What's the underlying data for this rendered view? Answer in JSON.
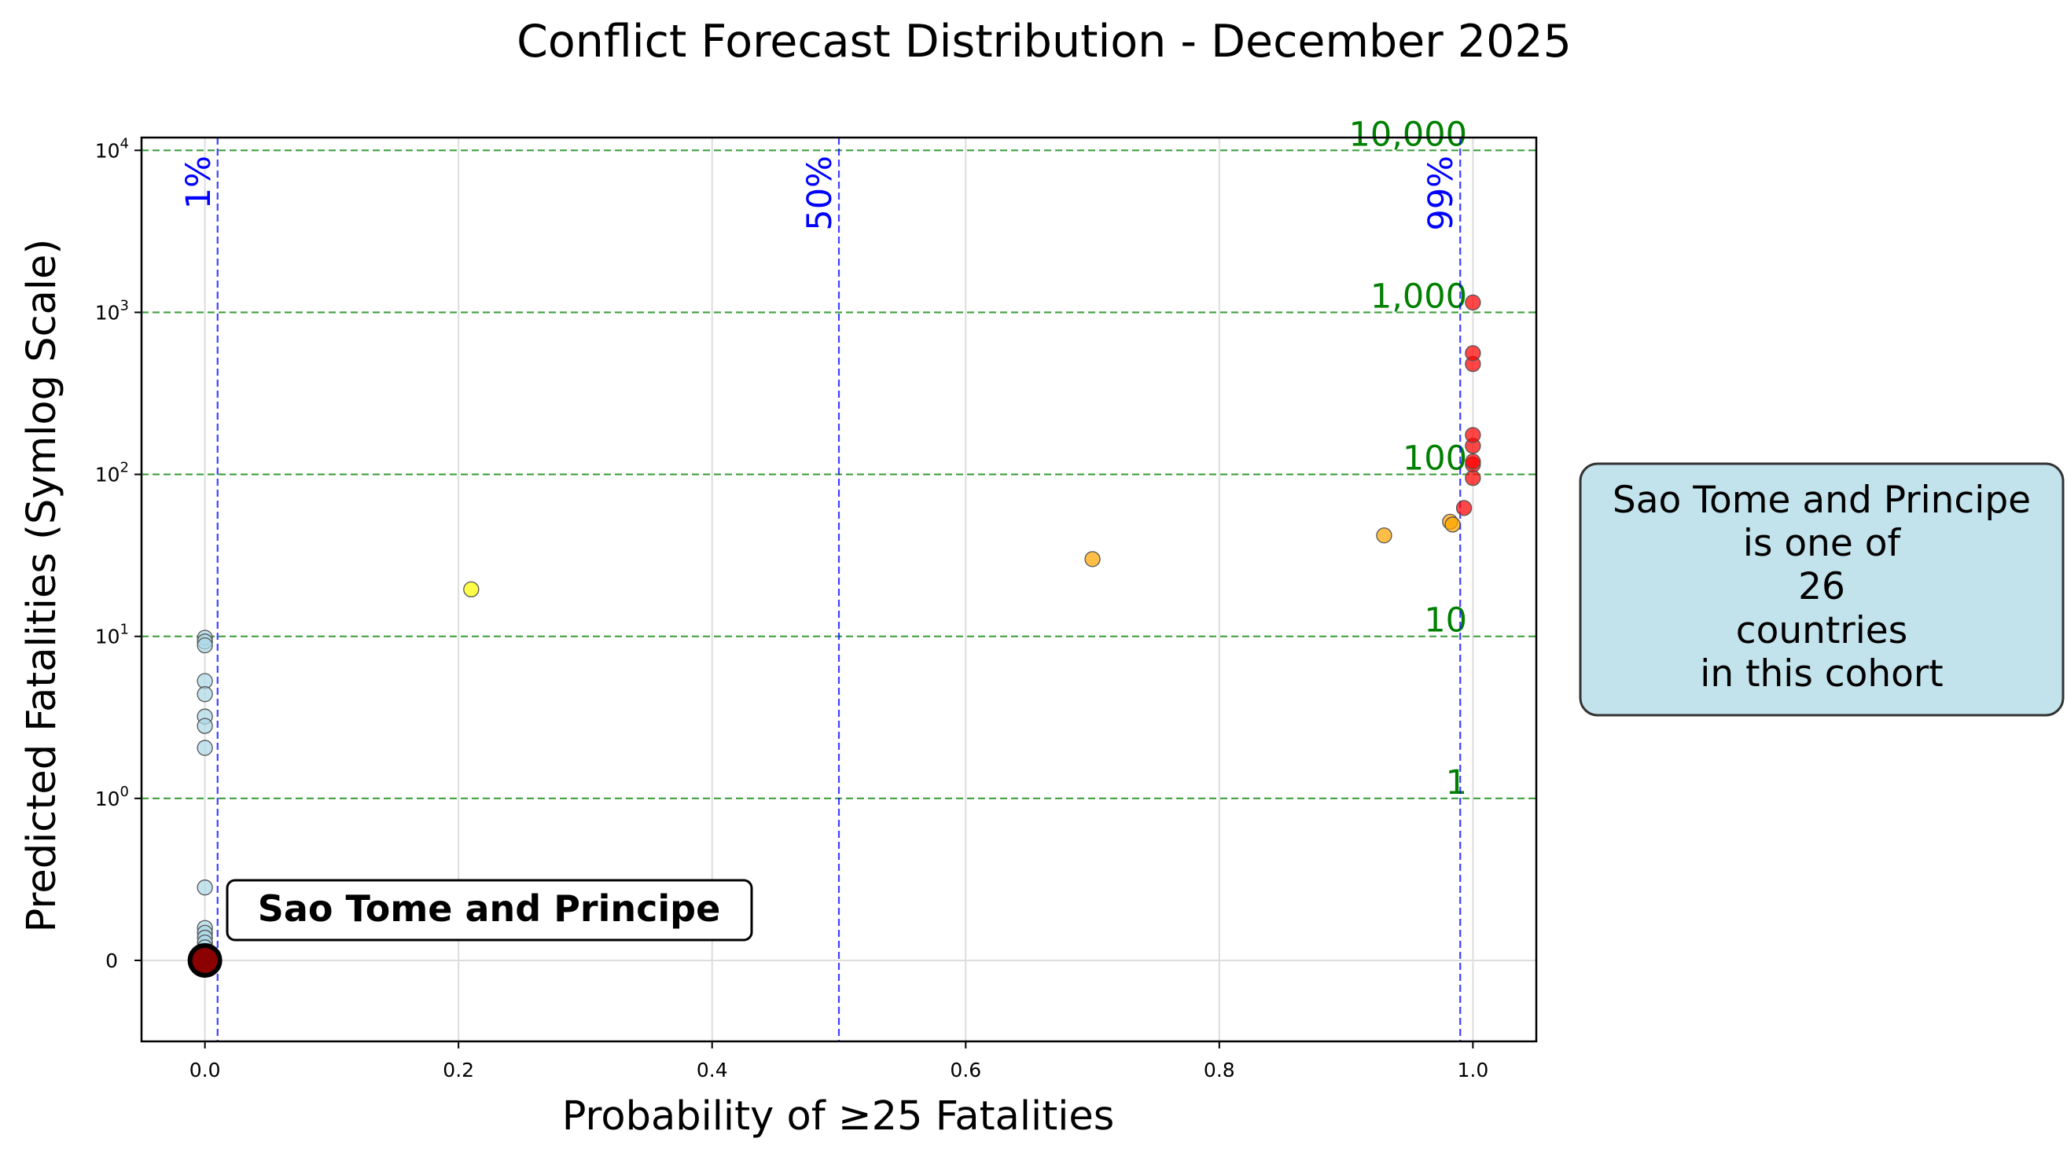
{
  "chart_data": {
    "type": "scatter",
    "title": "Conflict Forecast Distribution - December 2025",
    "xlabel": "Probability of ≥25 Fatalities",
    "ylabel": "Predicted Fatalities (Symlog Scale)",
    "xlim": [
      -0.05,
      1.05
    ],
    "x_ticks": [
      0.0,
      0.2,
      0.4,
      0.6,
      0.8,
      1.0
    ],
    "x_tick_labels": [
      "0.0",
      "0.2",
      "0.4",
      "0.6",
      "0.8",
      "1.0"
    ],
    "y_scale": "symlog",
    "ylim": [
      -0.5,
      12000
    ],
    "y_ticks": [
      {
        "value": 0,
        "label": "0",
        "base": "0",
        "exp": ""
      },
      {
        "value": 1,
        "label": "10^0",
        "base": "10",
        "exp": "0"
      },
      {
        "value": 10,
        "label": "10^1",
        "base": "10",
        "exp": "1"
      },
      {
        "value": 100,
        "label": "10^2",
        "base": "10",
        "exp": "2"
      },
      {
        "value": 1000,
        "label": "10^3",
        "base": "10",
        "exp": "3"
      },
      {
        "value": 10000,
        "label": "10^4",
        "base": "10",
        "exp": "4"
      }
    ],
    "grid": true,
    "vertical_reference_lines": [
      {
        "x": 0.01,
        "label": "1%",
        "color": "#0000ff"
      },
      {
        "x": 0.5,
        "label": "50%",
        "color": "#0000ff"
      },
      {
        "x": 0.99,
        "label": "99%",
        "color": "#0000ff"
      }
    ],
    "horizontal_reference_lines": [
      {
        "y": 1,
        "label": "1",
        "color": "#008000"
      },
      {
        "y": 10,
        "label": "10",
        "color": "#008000"
      },
      {
        "y": 100,
        "label": "100",
        "color": "#008000"
      },
      {
        "y": 1000,
        "label": "1,000",
        "color": "#008000"
      },
      {
        "y": 10000,
        "label": "10,000",
        "color": "#008000"
      }
    ],
    "series": [
      {
        "color": "#add8e6",
        "points": [
          {
            "x": 0.0,
            "y": 9.8
          },
          {
            "x": 0.0,
            "y": 9.3
          },
          {
            "x": 0.0,
            "y": 8.8
          },
          {
            "x": 0.0,
            "y": 5.3
          },
          {
            "x": 0.0,
            "y": 4.4
          },
          {
            "x": 0.0,
            "y": 3.2
          },
          {
            "x": 0.0,
            "y": 2.8
          },
          {
            "x": 0.0,
            "y": 2.05
          },
          {
            "x": 0.0,
            "y": 0.45
          },
          {
            "x": 0.0,
            "y": 0.2
          },
          {
            "x": 0.0,
            "y": 0.17
          },
          {
            "x": 0.0,
            "y": 0.14
          },
          {
            "x": 0.0,
            "y": 0.11
          },
          {
            "x": 0.0,
            "y": 0.08
          },
          {
            "x": 0.0,
            "y": 0.05
          },
          {
            "x": 0.0,
            "y": 0.02
          }
        ]
      },
      {
        "color": "#ffff00",
        "points": [
          {
            "x": 0.21,
            "y": 19.5
          }
        ]
      },
      {
        "color": "#ffa500",
        "points": [
          {
            "x": 0.7,
            "y": 30
          },
          {
            "x": 0.93,
            "y": 42
          },
          {
            "x": 0.982,
            "y": 51
          },
          {
            "x": 0.984,
            "y": 49
          }
        ]
      },
      {
        "color": "#ff0000",
        "points": [
          {
            "x": 0.993,
            "y": 62
          },
          {
            "x": 1.0,
            "y": 95
          },
          {
            "x": 1.0,
            "y": 115
          },
          {
            "x": 1.0,
            "y": 120
          },
          {
            "x": 1.0,
            "y": 150
          },
          {
            "x": 1.0,
            "y": 175
          },
          {
            "x": 1.0,
            "y": 480
          },
          {
            "x": 1.0,
            "y": 560
          },
          {
            "x": 1.0,
            "y": 1150
          }
        ]
      }
    ],
    "highlight": {
      "name": "Sao Tome and Principe",
      "x": 0.0,
      "y": 0.0,
      "color": "#8b0000"
    }
  },
  "info_box": {
    "line1": "Sao Tome and Principe",
    "line2": "is one of",
    "line3": "26",
    "line4": "countries",
    "line5": "in this cohort"
  }
}
